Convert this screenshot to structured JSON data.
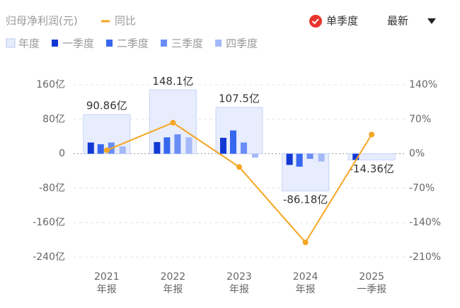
{
  "chart_data": {
    "type": "bar",
    "title": "归母净利润(元)",
    "toggle": "单季度",
    "sort": "最新",
    "categories": [
      "2021",
      "2022",
      "2023",
      "2024",
      "2025"
    ],
    "period_labels": [
      "年报",
      "年报",
      "年报",
      "年报",
      "一季报"
    ],
    "series": [
      {
        "name": "年度",
        "role": "annual",
        "color": "#e7edfd",
        "values": [
          90.86,
          148.1,
          107.5,
          -86.18,
          -14.36
        ],
        "value_labels": [
          "90.86亿",
          "148.1亿",
          "107.5亿",
          "-86.18亿",
          "-14.36亿"
        ]
      },
      {
        "name": "一季度",
        "color": "#1238d4",
        "values": [
          26,
          27,
          37,
          -26,
          -14.36
        ]
      },
      {
        "name": "二季度",
        "color": "#3766ef",
        "values": [
          22,
          38,
          54,
          -30,
          null
        ]
      },
      {
        "name": "三季度",
        "color": "#6a8df5",
        "values": [
          26,
          45,
          26,
          -12,
          null
        ]
      },
      {
        "name": "四季度",
        "color": "#a4b9f7",
        "values": [
          17,
          38,
          -9,
          -18,
          null
        ]
      },
      {
        "name": "同比",
        "type": "line",
        "axis": "y2",
        "color": "#f5a623",
        "values": [
          7,
          63,
          -27,
          -180,
          39
        ]
      }
    ],
    "ylim": [
      -240,
      160
    ],
    "yticks": [
      {
        "value": 160,
        "label": "160亿"
      },
      {
        "value": 80,
        "label": "80亿"
      },
      0,
      {
        "value": -80,
        "label": "-80亿"
      },
      {
        "value": -160,
        "label": "-160亿"
      },
      {
        "value": -240,
        "label": "-240亿"
      }
    ],
    "y2lim": [
      -210,
      140
    ],
    "y2ticks": [
      {
        "value": 140,
        "label": "140%"
      },
      {
        "value": 70,
        "label": "70%"
      },
      {
        "value": 0,
        "label": "0%"
      },
      {
        "value": -70,
        "label": "-70%"
      },
      {
        "value": -140,
        "label": "-140%"
      },
      {
        "value": -210,
        "label": "-210%"
      }
    ],
    "grid": true
  }
}
